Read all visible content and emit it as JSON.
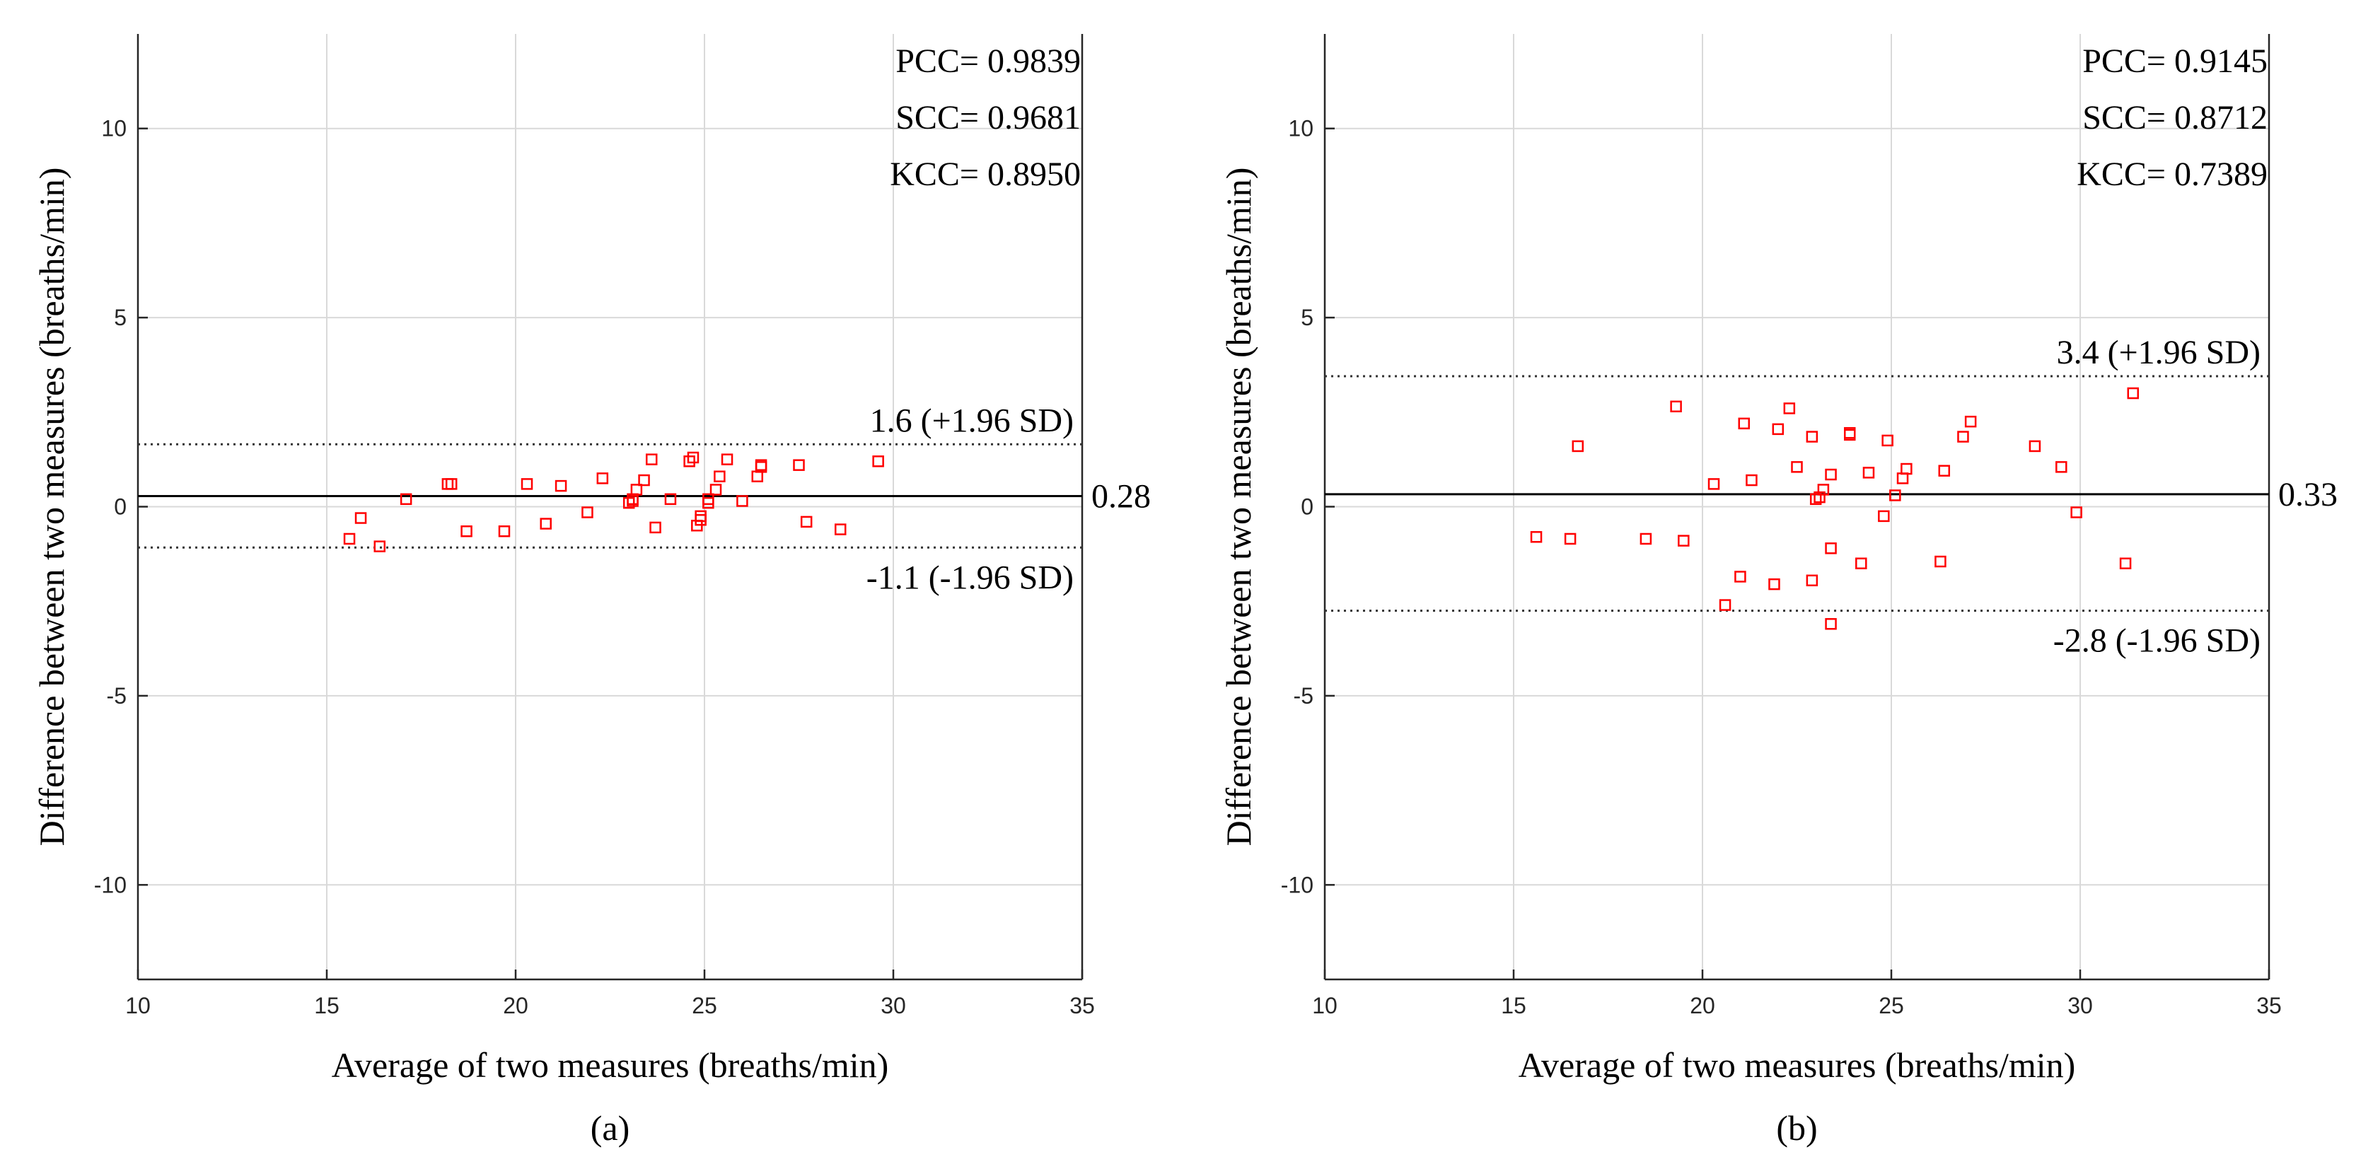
{
  "chart_data": [
    {
      "type": "scatter",
      "panel_label": "(a)",
      "xlabel": "Average of two measures (breaths/min)",
      "ylabel": "Difference between two measures (breaths/min)",
      "xlim": [
        10,
        35
      ],
      "ylim": [
        -12.5,
        12.5
      ],
      "xticks": [
        10,
        15,
        20,
        25,
        30,
        35
      ],
      "yticks": [
        -10,
        -5,
        0,
        5,
        10
      ],
      "grid": true,
      "stats": [
        "PCC= 0.9839",
        "SCC= 0.9681",
        "KCC= 0.8950"
      ],
      "mean_line": {
        "value": 0.28,
        "label": "0.28"
      },
      "upper_loa": {
        "value": 1.65,
        "label": "1.6 (+1.96 SD)"
      },
      "lower_loa": {
        "value": -1.08,
        "label": "-1.1 (-1.96 SD)"
      },
      "marker_color": "#ff0000",
      "points": [
        [
          15.6,
          -0.85
        ],
        [
          15.9,
          -0.3
        ],
        [
          16.4,
          -1.05
        ],
        [
          17.1,
          0.2
        ],
        [
          18.2,
          0.6
        ],
        [
          18.3,
          0.6
        ],
        [
          18.7,
          -0.65
        ],
        [
          19.7,
          -0.65
        ],
        [
          20.3,
          0.6
        ],
        [
          20.8,
          -0.45
        ],
        [
          21.2,
          0.55
        ],
        [
          21.9,
          -0.15
        ],
        [
          22.3,
          0.75
        ],
        [
          23.0,
          0.1
        ],
        [
          23.1,
          0.2
        ],
        [
          23.1,
          0.15
        ],
        [
          23.2,
          0.45
        ],
        [
          23.4,
          0.7
        ],
        [
          23.6,
          1.25
        ],
        [
          23.7,
          -0.55
        ],
        [
          24.1,
          0.2
        ],
        [
          24.6,
          1.2
        ],
        [
          24.7,
          1.3
        ],
        [
          24.8,
          -0.5
        ],
        [
          24.9,
          -0.35
        ],
        [
          24.9,
          -0.25
        ],
        [
          25.1,
          0.1
        ],
        [
          25.1,
          0.2
        ],
        [
          25.3,
          0.45
        ],
        [
          25.4,
          0.8
        ],
        [
          25.6,
          1.25
        ],
        [
          26.0,
          0.15
        ],
        [
          26.4,
          0.8
        ],
        [
          26.5,
          1.05
        ],
        [
          26.5,
          1.1
        ],
        [
          27.5,
          1.1
        ],
        [
          27.7,
          -0.4
        ],
        [
          28.6,
          -0.6
        ],
        [
          29.6,
          1.2
        ]
      ]
    },
    {
      "type": "scatter",
      "panel_label": "(b)",
      "xlabel": "Average of two measures (breaths/min)",
      "ylabel": "Difference between two measures (breaths/min)",
      "xlim": [
        10,
        35
      ],
      "ylim": [
        -12.5,
        12.5
      ],
      "xticks": [
        10,
        15,
        20,
        25,
        30,
        35
      ],
      "yticks": [
        -10,
        -5,
        0,
        5,
        10
      ],
      "grid": true,
      "stats": [
        "PCC= 0.9145",
        "SCC= 0.8712",
        "KCC= 0.7389"
      ],
      "mean_line": {
        "value": 0.33,
        "label": "0.33"
      },
      "upper_loa": {
        "value": 3.45,
        "label": "3.4 (+1.96 SD)"
      },
      "lower_loa": {
        "value": -2.75,
        "label": "-2.8 (-1.96 SD)"
      },
      "marker_color": "#ff0000",
      "points": [
        [
          15.6,
          -0.8
        ],
        [
          16.5,
          -0.85
        ],
        [
          16.7,
          1.6
        ],
        [
          18.5,
          -0.85
        ],
        [
          19.3,
          2.65
        ],
        [
          19.5,
          -0.9
        ],
        [
          20.3,
          0.6
        ],
        [
          20.6,
          -2.6
        ],
        [
          21.0,
          -1.85
        ],
        [
          21.1,
          2.2
        ],
        [
          21.3,
          0.7
        ],
        [
          21.9,
          -2.05
        ],
        [
          22.0,
          2.05
        ],
        [
          22.3,
          2.6
        ],
        [
          22.5,
          1.05
        ],
        [
          22.9,
          1.85
        ],
        [
          22.9,
          -1.95
        ],
        [
          23.0,
          0.2
        ],
        [
          23.1,
          0.25
        ],
        [
          23.2,
          0.45
        ],
        [
          23.4,
          0.85
        ],
        [
          23.4,
          -1.1
        ],
        [
          23.4,
          -3.1
        ],
        [
          23.9,
          1.9
        ],
        [
          23.9,
          1.95
        ],
        [
          24.2,
          -1.5
        ],
        [
          24.4,
          0.9
        ],
        [
          24.8,
          -0.25
        ],
        [
          24.9,
          1.75
        ],
        [
          25.1,
          0.3
        ],
        [
          25.3,
          0.75
        ],
        [
          25.4,
          1.0
        ],
        [
          26.3,
          -1.45
        ],
        [
          26.4,
          0.95
        ],
        [
          26.9,
          1.85
        ],
        [
          27.1,
          2.25
        ],
        [
          28.8,
          1.6
        ],
        [
          29.5,
          1.05
        ],
        [
          29.9,
          -0.15
        ],
        [
          31.2,
          -1.5
        ],
        [
          31.4,
          3.0
        ]
      ]
    }
  ]
}
